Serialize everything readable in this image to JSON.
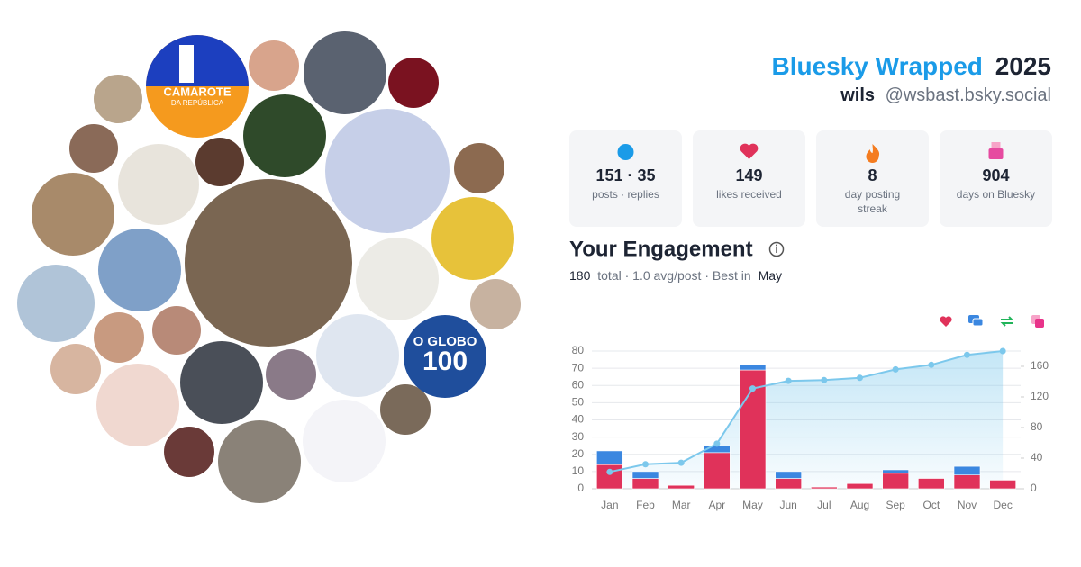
{
  "header": {
    "title": "Bluesky Wrapped",
    "year": "2025",
    "name": "wils",
    "handle": "@wsbast.bsky.social"
  },
  "stats": [
    {
      "value": "151 · 35",
      "label": "posts · replies"
    },
    {
      "value": "149",
      "label": "likes received"
    },
    {
      "value": "8",
      "label": [
        "day posting",
        "streak"
      ]
    },
    {
      "value": "904",
      "label": "days on Bluesky"
    }
  ],
  "avatar_texts": [
    "CAMAROTE",
    "DA REPÚBLICA",
    "O GLOBO",
    "100"
  ],
  "engagement": {
    "title": "Your Engagement",
    "total": "180",
    "summary": "total · 1.0 avg/post · Best in",
    "best": "May"
  },
  "chart_data": {
    "type": "stacked-bar-line",
    "categories": [
      "Jan",
      "Feb",
      "Mar",
      "Apr",
      "May",
      "Jun",
      "Jul",
      "Aug",
      "Sep",
      "Oct",
      "Nov",
      "Dec"
    ],
    "series": [
      {
        "color": "#e0325a",
        "values": [
          14,
          6,
          2,
          21,
          69,
          6,
          1,
          3,
          9,
          6,
          8,
          5
        ]
      },
      {
        "color": "#3b87e0",
        "values": [
          8,
          4,
          0,
          4,
          3,
          4,
          0,
          0,
          2,
          0,
          5,
          0
        ]
      },
      {
        "color": "#7cc8ec",
        "axis": "y2",
        "values": [
          22,
          32,
          34,
          59,
          131,
          141,
          142,
          145,
          156,
          162,
          175,
          180
        ]
      }
    ],
    "ylim": [
      0,
      80
    ],
    "yticks": [
      0,
      10,
      20,
      30,
      40,
      50,
      60,
      70,
      80
    ],
    "y2lim": [
      0,
      180
    ],
    "y2ticks": [
      0,
      40,
      80,
      120,
      160
    ],
    "grid": true
  }
}
